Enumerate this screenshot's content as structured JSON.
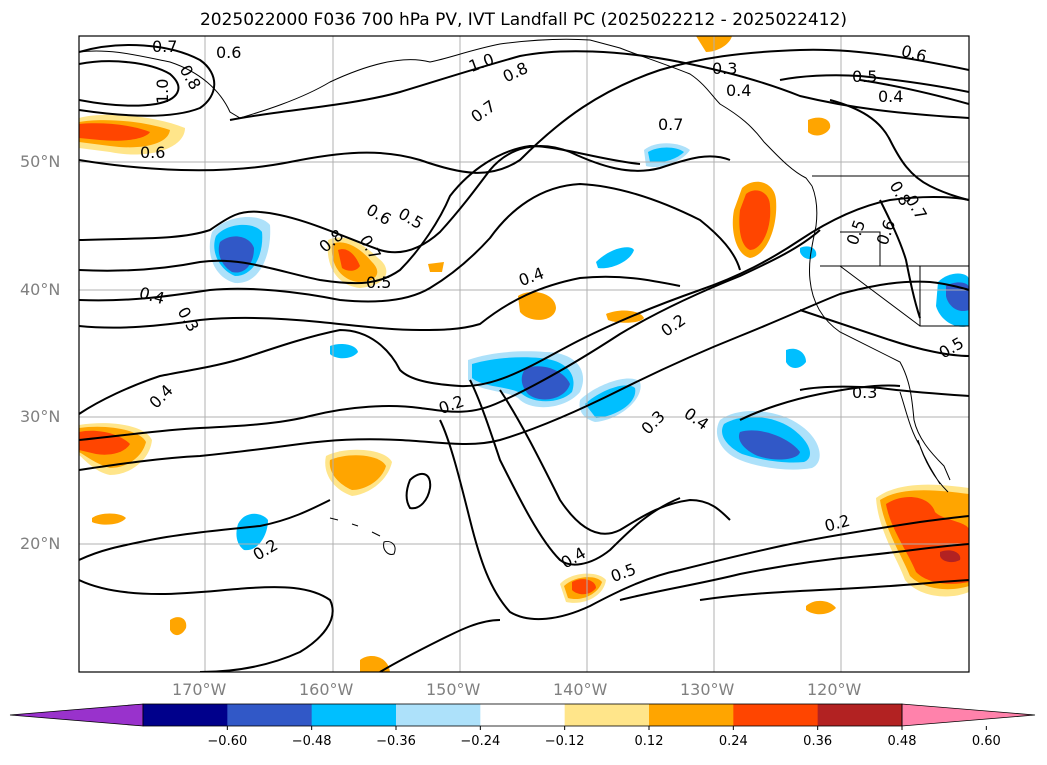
{
  "title": "2025022000 F036 700 hPa PV, IVT Landfall PC (2025022212 - 2025022412)",
  "latitude_labels": [
    "50°N",
    "40°N",
    "30°N",
    "20°N"
  ],
  "longitude_labels": [
    "170°W",
    "160°W",
    "150°W",
    "140°W",
    "130°W",
    "120°W"
  ],
  "colorbar": {
    "ticks": [
      "−0.60",
      "−0.48",
      "−0.36",
      "−0.24",
      "−0.12",
      "0.12",
      "0.24",
      "0.36",
      "0.48",
      "0.60"
    ],
    "colors": [
      "#9932cc",
      "#00008b",
      "#3158c7",
      "#00bfff",
      "#ade1fa",
      "#ffffff",
      "#ffe58a",
      "#ffa500",
      "#ff4500",
      "#b22222",
      "#ff82ab"
    ]
  },
  "contour_labels": [
    "0.7",
    "0.6",
    "1.0",
    "0.8",
    "1.0",
    "0.8",
    "0.7",
    "0.3",
    "0.4",
    "0.6",
    "0.5",
    "0.4",
    "0.6",
    "0.7",
    "0.6",
    "0.5",
    "0.8",
    "0.7",
    "0.5",
    "0.4",
    "0.4",
    "0.3",
    "0.2",
    "0.4",
    "0.2",
    "0.3",
    "0.4",
    "0.3",
    "0.5",
    "0.2",
    "0.2",
    "0.4",
    "0.5",
    "0.5",
    "0.6",
    "0.8",
    "0.7"
  ]
}
